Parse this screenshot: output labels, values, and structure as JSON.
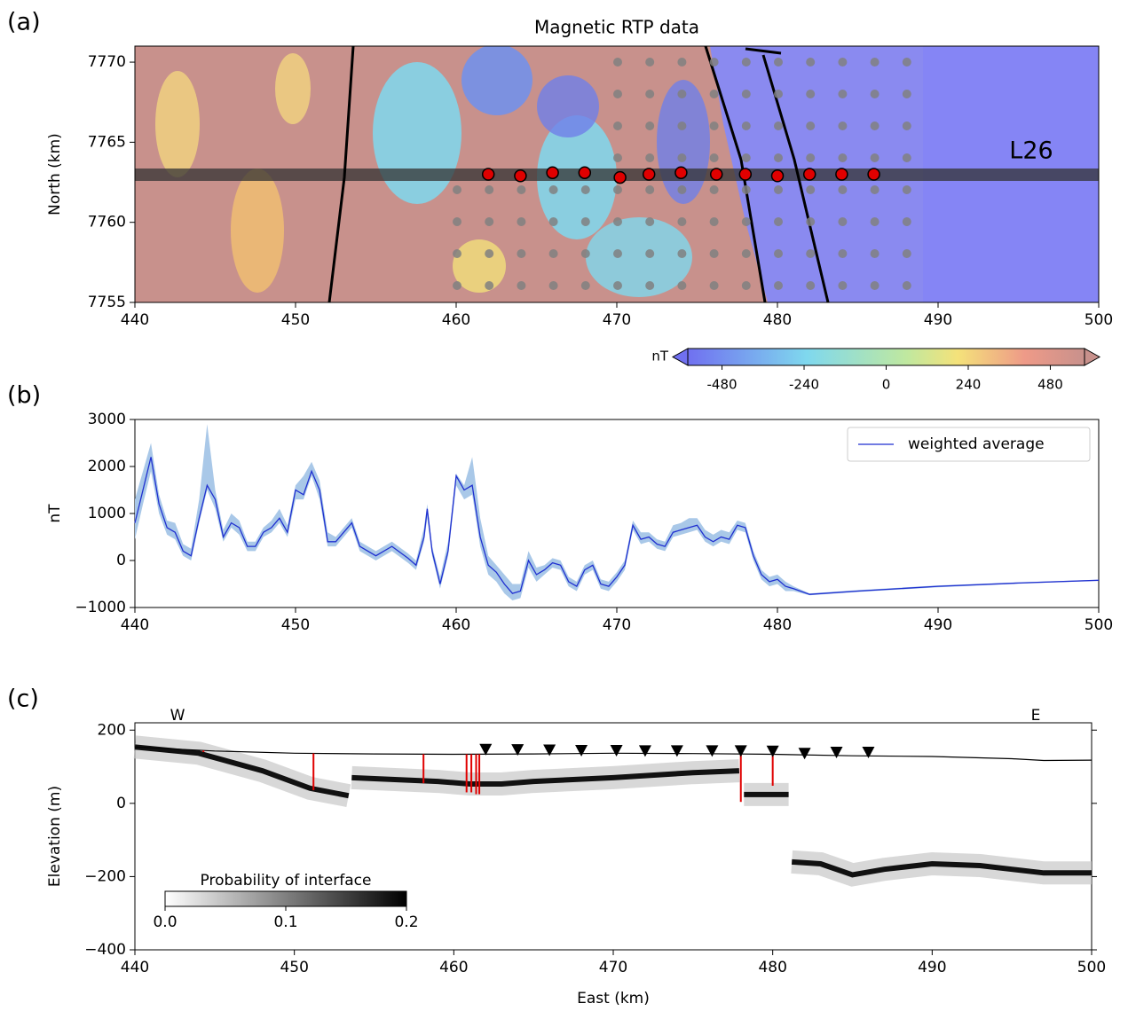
{
  "chart_data": [
    {
      "type": "map",
      "panel_label": "(a)",
      "title": "Magnetic RTP data",
      "ylabel": "North (km)",
      "xlim": [
        440,
        500
      ],
      "ylim": [
        7755,
        7771
      ],
      "xticks": [
        440,
        450,
        460,
        470,
        480,
        490,
        500
      ],
      "yticks": [
        7755,
        7760,
        7765,
        7770
      ],
      "annotation": "L26",
      "color": "#e00000",
      "x": [
        462,
        464,
        466,
        468,
        470.2,
        472,
        474,
        476.2,
        478,
        480,
        482,
        484,
        486
      ],
      "y": [
        7763,
        7762.9,
        7763.1,
        7763.1,
        7762.8,
        7763,
        7763.1,
        7763,
        7763,
        7762.9,
        7763,
        7763,
        7763
      ],
      "colorbar": {
        "label": "nT",
        "lim": [
          -580,
          580
        ],
        "ticks": [
          -480,
          -240,
          0,
          240,
          480
        ]
      }
    },
    {
      "type": "line",
      "panel_label": "(b)",
      "ylabel": "nT",
      "xlim": [
        440,
        500
      ],
      "ylim": [
        -1000,
        3000
      ],
      "xticks": [
        440,
        450,
        460,
        470,
        480,
        490,
        500
      ],
      "yticks": [
        {
          "value": -1000,
          "label": "−1000"
        },
        0,
        1000,
        2000,
        3000
      ],
      "legend": "upper right",
      "band_color": "#a9c8e8",
      "x": [
        440,
        440.5,
        441,
        441.5,
        442,
        442.5,
        443,
        443.5,
        444,
        444.5,
        445,
        445.5,
        446,
        446.5,
        447,
        447.5,
        448,
        448.5,
        449,
        449.5,
        450,
        450.5,
        451,
        451.5,
        452,
        452.5,
        453,
        453.5,
        454,
        455,
        456,
        457,
        457.5,
        458,
        458.2,
        458.5,
        459,
        459.5,
        460,
        460.5,
        461,
        461.5,
        462,
        462.5,
        463,
        463.5,
        464,
        464.5,
        465,
        465.5,
        466,
        466.5,
        467,
        467.5,
        468,
        468.5,
        469,
        469.5,
        470,
        470.5,
        471,
        471.5,
        472,
        472.5,
        473,
        473.5,
        474,
        474.5,
        475,
        475.5,
        476,
        476.5,
        477,
        477.5,
        478,
        478.5,
        479,
        479.5,
        480,
        480.5,
        481,
        482,
        485,
        490,
        495,
        500
      ],
      "series": [
        {
          "name": "weighted average",
          "color": "#1f2fd0",
          "values": [
            800,
            1500,
            2200,
            1200,
            700,
            600,
            200,
            100,
            900,
            1600,
            1300,
            500,
            800,
            700,
            300,
            300,
            600,
            700,
            900,
            600,
            1500,
            1400,
            1900,
            1500,
            400,
            400,
            600,
            800,
            300,
            100,
            300,
            50,
            -100,
            500,
            1100,
            200,
            -500,
            200,
            1800,
            1500,
            1600,
            500,
            -100,
            -250,
            -500,
            -700,
            -650,
            0,
            -300,
            -200,
            -50,
            -100,
            -450,
            -550,
            -200,
            -100,
            -500,
            -550,
            -350,
            -100,
            750,
            450,
            500,
            350,
            300,
            600,
            650,
            700,
            750,
            500,
            400,
            500,
            450,
            750,
            700,
            100,
            -300,
            -450,
            -400,
            -550,
            -600,
            -720,
            -650,
            -550,
            -480,
            -420
          ]
        }
      ],
      "band_upper": [
        1300,
        1900,
        2500,
        1400,
        850,
        800,
        350,
        250,
        1300,
        2900,
        1500,
        650,
        1000,
        850,
        400,
        400,
        700,
        850,
        1100,
        750,
        1600,
        1800,
        2100,
        1700,
        600,
        500,
        700,
        900,
        400,
        200,
        400,
        150,
        0,
        700,
        1200,
        300,
        -350,
        400,
        1850,
        1600,
        2200,
        900,
        100,
        -100,
        -300,
        -500,
        -500,
        200,
        -150,
        -100,
        50,
        0,
        -350,
        -450,
        -100,
        0,
        -400,
        -450,
        -250,
        0,
        850,
        600,
        600,
        450,
        400,
        750,
        800,
        900,
        900,
        650,
        550,
        650,
        600,
        850,
        800,
        200,
        -200,
        -350,
        -300,
        -450,
        -550,
        -700,
        -630,
        -530,
        -465,
        -410
      ],
      "band_lower": [
        450,
        1200,
        1900,
        1000,
        550,
        450,
        100,
        0,
        800,
        1500,
        1100,
        400,
        700,
        550,
        200,
        200,
        500,
        600,
        800,
        500,
        1300,
        1300,
        1800,
        1300,
        300,
        300,
        500,
        700,
        200,
        0,
        200,
        -50,
        -200,
        400,
        900,
        100,
        -600,
        100,
        1600,
        1300,
        1400,
        300,
        -300,
        -450,
        -700,
        -850,
        -800,
        -150,
        -450,
        -300,
        -150,
        -200,
        -550,
        -650,
        -300,
        -200,
        -600,
        -650,
        -450,
        -200,
        650,
        350,
        400,
        250,
        200,
        500,
        550,
        600,
        650,
        400,
        300,
        400,
        350,
        650,
        600,
        0,
        -400,
        -550,
        -500,
        -650,
        -650,
        -740,
        -670,
        -570,
        -495,
        -430
      ]
    },
    {
      "type": "section",
      "panel_label": "(c)",
      "xlabel": "East (km)",
      "ylabel": "Elevation (m)",
      "west_label": "W",
      "east_label": "E",
      "xlim": [
        440,
        500
      ],
      "ylim": [
        -400,
        220
      ],
      "xticks": [
        440,
        450,
        460,
        470,
        480,
        490,
        500
      ],
      "yticks": [
        {
          "value": -400,
          "label": "−400"
        },
        {
          "value": -200,
          "label": "−200"
        },
        0,
        200
      ],
      "x": [
        440,
        445,
        450,
        455,
        460,
        465,
        470,
        475,
        480,
        485,
        490,
        495,
        497,
        500
      ],
      "topography": [
        154,
        143,
        137,
        135,
        134,
        135,
        137,
        136,
        134,
        130,
        128,
        122,
        117,
        118
      ],
      "interface_x": [
        440,
        444,
        448,
        451,
        453.4,
        453.5,
        453.6,
        459,
        461,
        463,
        465,
        470,
        475,
        477.9,
        478.1,
        478.2,
        481,
        481.1,
        481.2,
        483,
        485,
        487,
        490,
        493,
        495,
        497,
        500
      ],
      "interface_values": [
        154,
        137,
        89,
        41,
        21,
        null,
        70,
        60,
        53,
        53,
        60,
        70,
        84,
        89,
        null,
        24,
        24,
        null,
        -160,
        -165,
        -195,
        -180,
        -165,
        -170,
        -180,
        -190,
        -190
      ],
      "marker_x": [
        462,
        464,
        466,
        468,
        470.2,
        472,
        474,
        476.2,
        478,
        480,
        482,
        484,
        486
      ],
      "marker_y": [
        148,
        147,
        146,
        145,
        145,
        144,
        144,
        144,
        144,
        143,
        137,
        140,
        140
      ],
      "pick_x": [
        444.3,
        451.2,
        458.1,
        460.8,
        461.1,
        461.4,
        461.6,
        478,
        480
      ],
      "pick_bottom": [
        140,
        36,
        55,
        30,
        30,
        25,
        25,
        4,
        48
      ],
      "colorbar": {
        "label": "Probability of interface",
        "lim": [
          0,
          0.2
        ],
        "ticks": [
          {
            "value": 0,
            "label": "0.0"
          },
          0.1,
          0.2
        ]
      }
    }
  ]
}
